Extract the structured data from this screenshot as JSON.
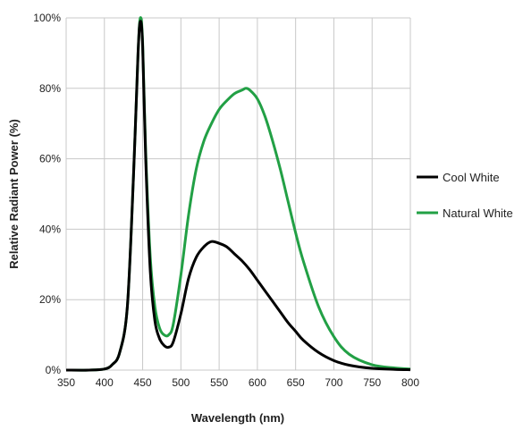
{
  "chart_data": {
    "type": "line",
    "title": "",
    "xlabel": "Wavelength (nm)",
    "ylabel": "Relative Radiant Power (%)",
    "xlim": [
      350,
      800
    ],
    "ylim": [
      0,
      100
    ],
    "xticks": [
      350,
      400,
      450,
      500,
      550,
      600,
      650,
      700,
      750,
      800
    ],
    "yticks": [
      0,
      20,
      40,
      60,
      80,
      100
    ],
    "ytick_labels": [
      "0%",
      "20%",
      "40%",
      "60%",
      "80%",
      "100%"
    ],
    "grid": true,
    "legend_position": "right",
    "series": [
      {
        "name": "Cool White",
        "color": "#000000",
        "x": [
          350,
          380,
          400,
          410,
          420,
          430,
          438,
          444,
          447,
          450,
          454,
          460,
          466,
          472,
          478,
          484,
          490,
          500,
          510,
          520,
          530,
          540,
          550,
          560,
          570,
          580,
          590,
          600,
          610,
          620,
          630,
          640,
          650,
          660,
          680,
          700,
          720,
          750,
          780,
          800
        ],
        "y": [
          0,
          0,
          0.3,
          1.5,
          5,
          18,
          55,
          90,
          99,
          92,
          60,
          28,
          14,
          9,
          7,
          6.5,
          8,
          16,
          26,
          32,
          35,
          36.5,
          36,
          35,
          33,
          31,
          28.5,
          25.5,
          22.5,
          19.5,
          16.5,
          13.5,
          11,
          8.5,
          5,
          2.7,
          1.4,
          0.5,
          0.2,
          0.1
        ]
      },
      {
        "name": "Natural White",
        "color": "#22a045",
        "x": [
          350,
          380,
          400,
          410,
          420,
          430,
          438,
          444,
          447,
          450,
          454,
          460,
          466,
          472,
          478,
          484,
          490,
          500,
          510,
          520,
          530,
          540,
          550,
          560,
          570,
          580,
          585,
          590,
          600,
          610,
          620,
          630,
          640,
          650,
          660,
          680,
          700,
          720,
          750,
          780,
          800
        ],
        "y": [
          0,
          0,
          0.3,
          1.5,
          5,
          18,
          55,
          90,
          100,
          93,
          62,
          32,
          18,
          12,
          10,
          10,
          13,
          27,
          44,
          57,
          65,
          70,
          74,
          76.5,
          78.5,
          79.5,
          80,
          79.5,
          77,
          72,
          65,
          57,
          48,
          39,
          31,
          18,
          9.5,
          4.5,
          1.5,
          0.6,
          0.3
        ]
      }
    ]
  }
}
